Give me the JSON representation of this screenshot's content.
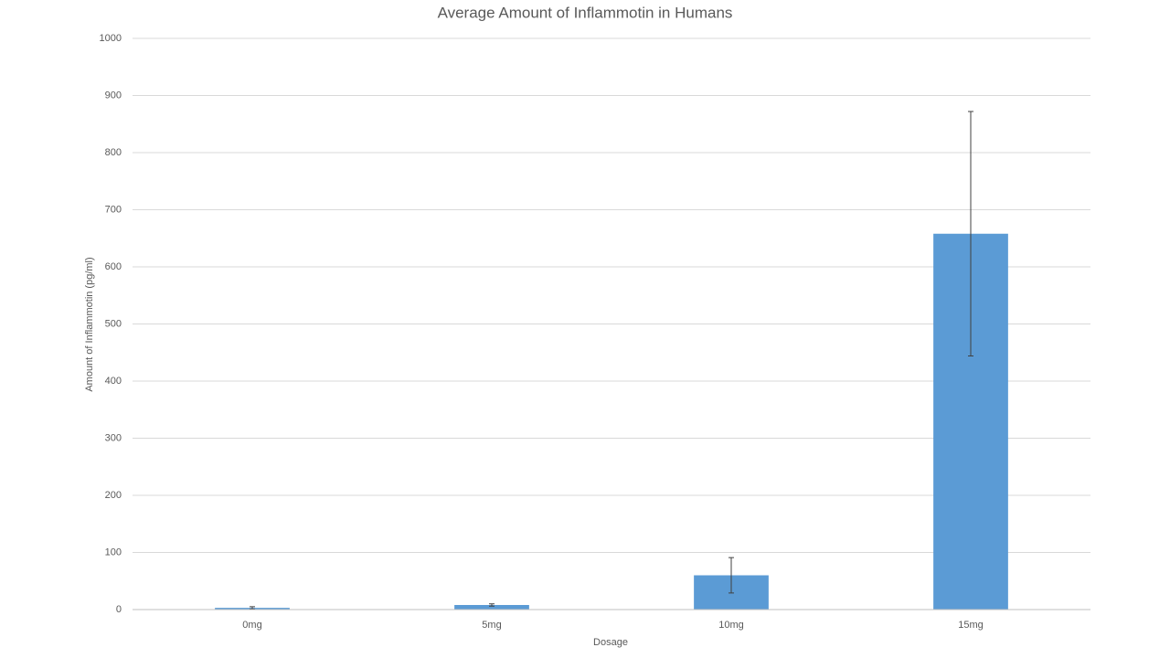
{
  "chart_data": {
    "type": "bar",
    "title": "Average Amount of Inflammotin in Humans",
    "x_label": "Dosage",
    "y_label": "Amount of Inflammotin (pg/ml)",
    "categories": [
      "0mg",
      "5mg",
      "10mg",
      "15mg"
    ],
    "values": [
      3,
      8,
      60,
      658
    ],
    "errors": [
      2,
      2,
      31,
      214
    ],
    "color": "#5b9bd5",
    "ylim": [
      0,
      1000
    ],
    "yticks": [
      0,
      100,
      200,
      300,
      400,
      500,
      600,
      700,
      800,
      900,
      1000
    ],
    "grid": true
  }
}
